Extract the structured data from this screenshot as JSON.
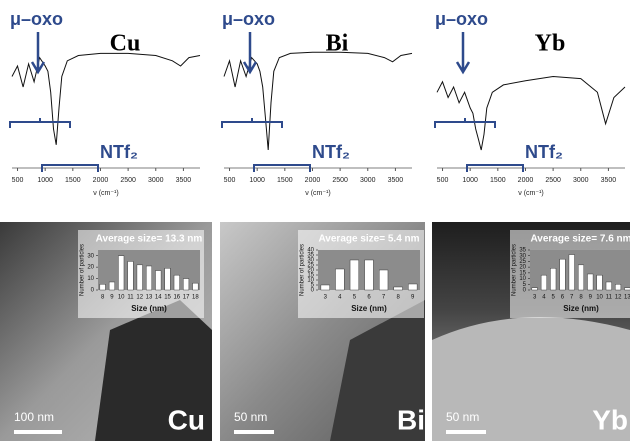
{
  "chart_data": [
    {
      "type": "line",
      "label": "Cu",
      "annotations": [
        "μ–oxo",
        "NTf₂"
      ],
      "xlabel": "ν (cm⁻¹)",
      "color": "#111111",
      "x": [
        400,
        500,
        600,
        700,
        800,
        900,
        1000,
        1050,
        1100,
        1150,
        1200,
        1250,
        1300,
        1400,
        1600,
        2000,
        2500,
        3000,
        3300,
        3450,
        3600,
        3800
      ],
      "values": [
        70,
        80,
        60,
        82,
        65,
        88,
        80,
        75,
        55,
        20,
        5,
        40,
        70,
        85,
        90,
        92,
        92,
        90,
        85,
        80,
        88,
        90
      ],
      "xlim": [
        400,
        3800
      ],
      "xticks": [
        500,
        1000,
        1500,
        2000,
        2500,
        3000,
        3500
      ],
      "ylim": [
        0,
        100
      ]
    },
    {
      "type": "line",
      "label": "Bi",
      "annotations": [
        "μ–oxo",
        "NTf₂"
      ],
      "xlabel": "ν (cm⁻¹)",
      "color": "#111111",
      "x": [
        400,
        500,
        600,
        700,
        800,
        900,
        1000,
        1050,
        1100,
        1150,
        1200,
        1250,
        1300,
        1400,
        1600,
        2000,
        2500,
        3000,
        3300,
        3450,
        3600,
        3800
      ],
      "values": [
        70,
        85,
        60,
        85,
        70,
        88,
        82,
        75,
        60,
        30,
        0,
        45,
        75,
        88,
        92,
        93,
        93,
        92,
        88,
        84,
        90,
        92
      ],
      "xlim": [
        400,
        3800
      ],
      "xticks": [
        500,
        1000,
        1500,
        2000,
        2500,
        3000,
        3500
      ],
      "ylim": [
        0,
        100
      ]
    },
    {
      "type": "line",
      "label": "Yb",
      "annotations": [
        "μ–oxo",
        "NTf₂"
      ],
      "xlabel": "ν (cm⁻¹)",
      "color": "#111111",
      "x": [
        400,
        500,
        600,
        700,
        800,
        900,
        1000,
        1050,
        1100,
        1150,
        1200,
        1250,
        1300,
        1400,
        1600,
        2000,
        2500,
        3000,
        3300,
        3450,
        3600,
        3800
      ],
      "values": [
        55,
        65,
        50,
        60,
        45,
        55,
        40,
        35,
        20,
        10,
        0,
        15,
        40,
        55,
        62,
        66,
        70,
        68,
        55,
        25,
        50,
        60
      ],
      "xlim": [
        400,
        3800
      ],
      "xticks": [
        500,
        1000,
        1500,
        2000,
        2500,
        3000,
        3500
      ],
      "ylim": [
        0,
        100
      ]
    },
    {
      "type": "bar",
      "label": "Cu",
      "scale_bar": "100 nm",
      "title": "Average size= 13.3 nm",
      "xlabel": "Size (nm)",
      "ylabel": "Number of particles",
      "color": "#ffffff",
      "categories": [
        "8",
        "9",
        "10",
        "11",
        "12",
        "13",
        "14",
        "15",
        "16",
        "17",
        "18"
      ],
      "values": [
        5,
        7,
        30,
        25,
        22,
        21,
        17,
        19,
        13,
        10,
        6
      ],
      "ylim": [
        0,
        35
      ],
      "yticks": [
        0,
        10,
        20,
        30
      ]
    },
    {
      "type": "bar",
      "label": "Bi",
      "scale_bar": "50 nm",
      "title": "Average size= 5.4 nm",
      "xlabel": "Size (nm)",
      "ylabel": "Number of particles",
      "color": "#ffffff",
      "categories": [
        "3",
        "4",
        "5",
        "6",
        "7",
        "8",
        "9"
      ],
      "values": [
        5,
        21,
        30,
        30,
        20,
        3,
        6
      ],
      "ylim": [
        0,
        40
      ],
      "yticks": [
        0,
        5,
        10,
        15,
        20,
        25,
        30,
        35,
        40
      ]
    },
    {
      "type": "bar",
      "label": "Yb",
      "scale_bar": "50 nm",
      "title": "Average size= 7.6 nm",
      "xlabel": "Size (nm)",
      "ylabel": "Number of particles",
      "color": "#ffffff",
      "categories": [
        "3",
        "4",
        "5",
        "6",
        "7",
        "8",
        "9",
        "10",
        "11",
        "12",
        "13"
      ],
      "values": [
        2,
        13,
        19,
        27,
        31,
        22,
        14,
        13,
        7,
        5,
        2
      ],
      "ylim": [
        0,
        35
      ],
      "yticks": [
        0,
        5,
        10,
        15,
        20,
        25,
        30,
        35
      ]
    }
  ]
}
